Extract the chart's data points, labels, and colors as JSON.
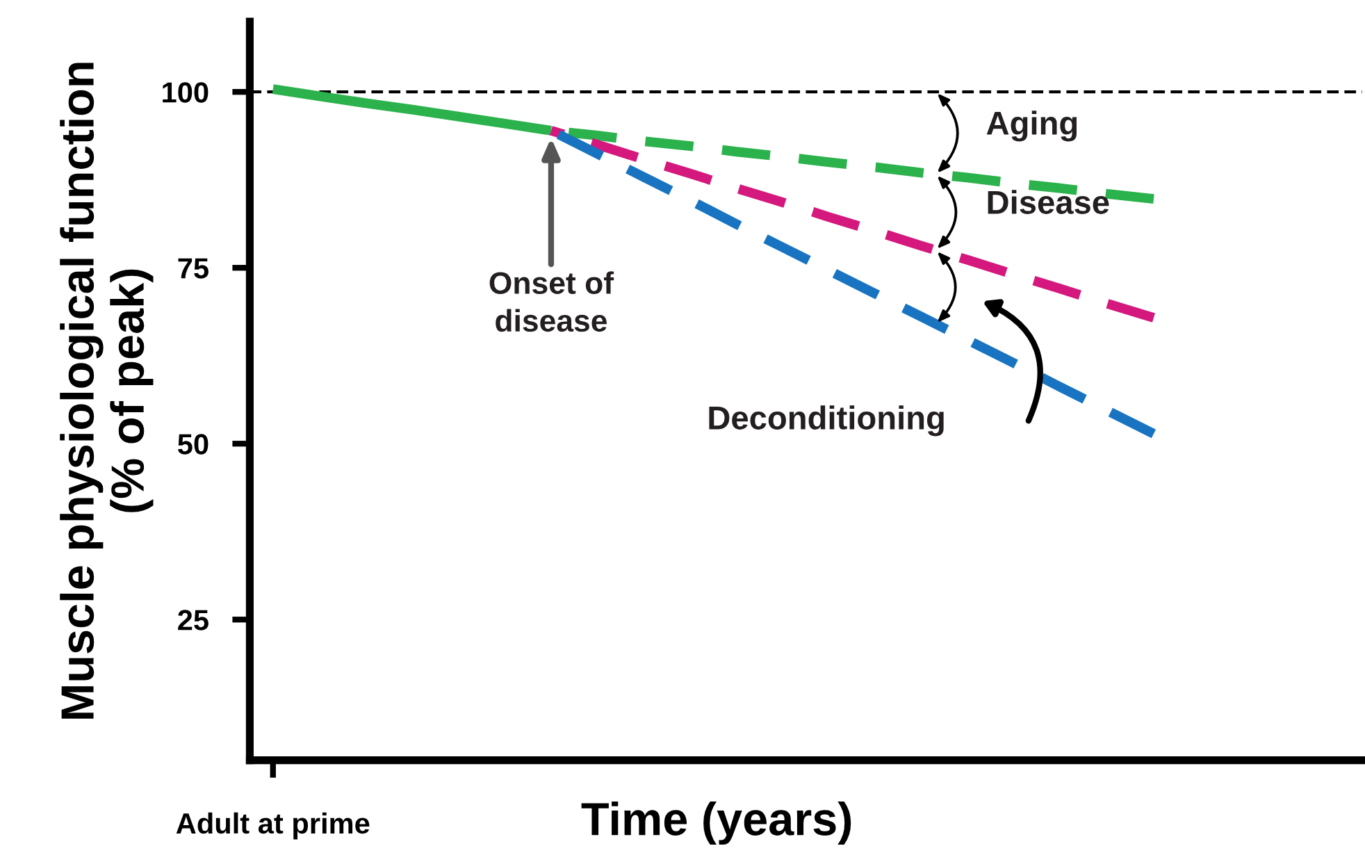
{
  "chart_data": {
    "type": "line",
    "xlabel": "Time (years)",
    "ylabel": "Muscle physiological function\n(% of peak)",
    "categories": [
      "Adult at prime",
      null,
      null,
      null,
      null,
      null,
      null,
      null,
      null,
      null,
      null,
      null,
      null,
      null,
      null,
      null,
      null,
      null,
      null,
      null,
      null,
      null,
      null,
      null
    ],
    "ylim": [
      5,
      110
    ],
    "yticks": [
      25,
      50,
      75,
      100
    ],
    "grid": false,
    "legend": false,
    "marker": "none",
    "series": [
      {
        "color": "#2bb24c",
        "values": [
          100.4,
          99.4,
          98.4,
          97.5,
          96.5,
          95.5,
          94.5,
          null,
          null,
          null,
          null,
          null,
          null,
          null,
          null,
          null,
          null,
          null,
          null,
          null,
          null,
          null,
          null,
          null
        ],
        "line_style": "solid"
      },
      {
        "color": "#2bb24c",
        "values": [
          null,
          null,
          null,
          null,
          null,
          null,
          94.5,
          93.8,
          93.0,
          92.3,
          91.5,
          90.8,
          90.0,
          89.3,
          88.5,
          87.8,
          87.0,
          86.3,
          85.5,
          84.8,
          null,
          null,
          null,
          null
        ],
        "line_style": "dashed"
      },
      {
        "color": "#d4187d",
        "values": [
          null,
          null,
          null,
          null,
          null,
          null,
          94.5,
          92.5,
          90.4,
          88.4,
          86.3,
          84.3,
          82.2,
          80.2,
          78.1,
          76.1,
          74.0,
          72.0,
          69.9,
          67.9,
          null,
          null,
          null,
          null
        ],
        "line_style": "dashed"
      },
      {
        "color": "#1874c1",
        "values": [
          null,
          null,
          null,
          null,
          null,
          null,
          94.5,
          91.2,
          87.9,
          84.6,
          81.2,
          77.9,
          74.6,
          71.3,
          68.0,
          64.7,
          61.4,
          58.0,
          54.7,
          51.4,
          null,
          null,
          null,
          null
        ],
        "line_style": "dashed"
      }
    ],
    "ref_lines": [
      {
        "axis": "y",
        "value": 100,
        "color": "#000000",
        "line_style": "dashed"
      }
    ],
    "annotations": [
      "Onset of\ndisease",
      "Aging",
      "Disease",
      "Deconditioning"
    ]
  }
}
